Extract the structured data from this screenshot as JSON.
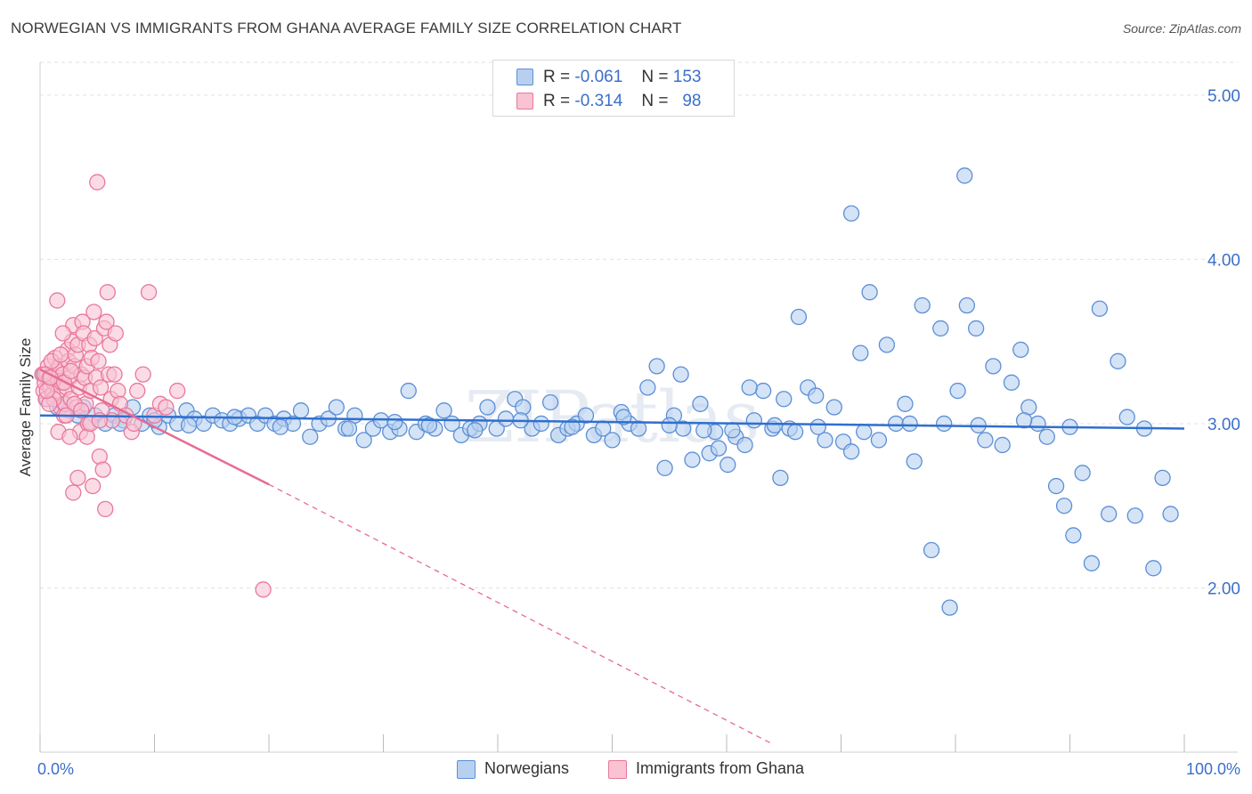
{
  "header": {
    "title": "NORWEGIAN VS IMMIGRANTS FROM GHANA AVERAGE FAMILY SIZE CORRELATION CHART",
    "source": "Source: ZipAtlas.com"
  },
  "legend_top": {
    "rows": [
      {
        "r_label": "R =",
        "r_value": "-0.061",
        "n_label": "N =",
        "n_value": "153"
      },
      {
        "r_label": "R =",
        "r_value": "-0.314",
        "n_label": "N =",
        "n_value": "98"
      }
    ]
  },
  "legend_bottom": {
    "series1": "Norwegians",
    "series2": "Immigrants from Ghana"
  },
  "colors": {
    "blue_fill": "#b8d0f0",
    "blue_stroke": "#5b8fd6",
    "blue_line": "#2f6fcf",
    "pink_fill": "#f9c3d3",
    "pink_stroke": "#e9789b",
    "pink_line": "#e66b93",
    "axis_text": "#3b6fc9",
    "grid": "#e2e2e2"
  },
  "chart_data": {
    "type": "scatter",
    "title": "NORWEGIAN VS IMMIGRANTS FROM GHANA AVERAGE FAMILY SIZE CORRELATION CHART",
    "xlabel": "",
    "ylabel": "Average Family Size",
    "xlim": [
      0,
      100
    ],
    "ylim": [
      1.0,
      5.2
    ],
    "x_tick_labels": [
      "0.0%",
      "100.0%"
    ],
    "y_ticks": [
      2.0,
      3.0,
      4.0,
      5.0
    ],
    "y_tick_labels": [
      "2.00",
      "3.00",
      "4.00",
      "5.00"
    ],
    "grid": "horizontal dashed",
    "legend_position": "top-center",
    "series": [
      {
        "name": "Norwegians",
        "r": -0.061,
        "n": 153,
        "trend": {
          "x": [
            0,
            100
          ],
          "y": [
            3.05,
            2.97
          ]
        },
        "points": [
          [
            0.3,
            3.3
          ],
          [
            0.6,
            3.15
          ],
          [
            1.5,
            3.1
          ],
          [
            2.1,
            3.12
          ],
          [
            3.3,
            3.05
          ],
          [
            4.2,
            3.0
          ],
          [
            4.8,
            3.05
          ],
          [
            5.7,
            3.0
          ],
          [
            6.5,
            3.05
          ],
          [
            7.3,
            3.02
          ],
          [
            8.1,
            3.1
          ],
          [
            8.9,
            3.0
          ],
          [
            9.6,
            3.05
          ],
          [
            10.4,
            2.98
          ],
          [
            11.2,
            3.05
          ],
          [
            12.0,
            3.0
          ],
          [
            12.8,
            3.08
          ],
          [
            13.5,
            3.03
          ],
          [
            14.3,
            3.0
          ],
          [
            15.1,
            3.05
          ],
          [
            15.9,
            3.02
          ],
          [
            16.6,
            3.0
          ],
          [
            17.4,
            3.03
          ],
          [
            18.2,
            3.05
          ],
          [
            19.0,
            3.0
          ],
          [
            19.7,
            3.05
          ],
          [
            20.5,
            3.0
          ],
          [
            21.3,
            3.03
          ],
          [
            22.1,
            3.0
          ],
          [
            22.8,
            3.08
          ],
          [
            23.6,
            2.92
          ],
          [
            24.4,
            3.0
          ],
          [
            25.2,
            3.03
          ],
          [
            25.9,
            3.1
          ],
          [
            26.7,
            2.97
          ],
          [
            27.5,
            3.05
          ],
          [
            28.3,
            2.9
          ],
          [
            29.1,
            2.97
          ],
          [
            29.8,
            3.02
          ],
          [
            30.6,
            2.95
          ],
          [
            31.4,
            2.97
          ],
          [
            32.2,
            3.2
          ],
          [
            32.9,
            2.95
          ],
          [
            33.7,
            3.0
          ],
          [
            34.5,
            2.97
          ],
          [
            35.3,
            3.08
          ],
          [
            36.0,
            3.0
          ],
          [
            36.8,
            2.93
          ],
          [
            37.6,
            2.97
          ],
          [
            38.4,
            3.0
          ],
          [
            39.1,
            3.1
          ],
          [
            39.9,
            2.97
          ],
          [
            40.7,
            3.03
          ],
          [
            41.5,
            3.15
          ],
          [
            42.2,
            3.1
          ],
          [
            43.0,
            2.97
          ],
          [
            43.8,
            3.0
          ],
          [
            44.6,
            3.13
          ],
          [
            45.3,
            2.93
          ],
          [
            46.1,
            2.97
          ],
          [
            46.9,
            3.0
          ],
          [
            47.7,
            3.05
          ],
          [
            48.4,
            2.93
          ],
          [
            49.2,
            2.97
          ],
          [
            50.0,
            2.9
          ],
          [
            50.8,
            3.07
          ],
          [
            51.5,
            3.0
          ],
          [
            52.3,
            2.97
          ],
          [
            53.1,
            3.22
          ],
          [
            53.9,
            3.35
          ],
          [
            54.6,
            2.73
          ],
          [
            55.4,
            3.05
          ],
          [
            56.2,
            2.97
          ],
          [
            57.0,
            2.78
          ],
          [
            57.7,
            3.12
          ],
          [
            58.5,
            2.82
          ],
          [
            59.3,
            2.85
          ],
          [
            60.1,
            2.75
          ],
          [
            60.8,
            2.92
          ],
          [
            61.6,
            2.87
          ],
          [
            62.4,
            3.02
          ],
          [
            63.2,
            3.2
          ],
          [
            64.0,
            2.97
          ],
          [
            64.7,
            2.67
          ],
          [
            65.5,
            2.97
          ],
          [
            66.3,
            3.65
          ],
          [
            67.1,
            3.22
          ],
          [
            67.8,
            3.17
          ],
          [
            68.6,
            2.9
          ],
          [
            69.4,
            3.1
          ],
          [
            70.2,
            2.89
          ],
          [
            70.9,
            2.83
          ],
          [
            71.7,
            3.43
          ],
          [
            72.5,
            3.8
          ],
          [
            73.3,
            2.9
          ],
          [
            74.0,
            3.48
          ],
          [
            74.8,
            3.0
          ],
          [
            75.6,
            3.12
          ],
          [
            76.4,
            2.77
          ],
          [
            77.1,
            3.72
          ],
          [
            77.9,
            2.23
          ],
          [
            78.7,
            3.58
          ],
          [
            79.5,
            1.88
          ],
          [
            80.2,
            3.2
          ],
          [
            81.0,
            3.72
          ],
          [
            81.8,
            3.58
          ],
          [
            82.6,
            2.9
          ],
          [
            83.3,
            3.35
          ],
          [
            84.1,
            2.87
          ],
          [
            84.9,
            3.25
          ],
          [
            85.7,
            3.45
          ],
          [
            86.4,
            3.1
          ],
          [
            87.2,
            3.0
          ],
          [
            88.0,
            2.92
          ],
          [
            88.8,
            2.62
          ],
          [
            89.5,
            2.5
          ],
          [
            90.3,
            2.32
          ],
          [
            91.1,
            2.7
          ],
          [
            91.9,
            2.15
          ],
          [
            92.6,
            3.7
          ],
          [
            93.4,
            2.45
          ],
          [
            94.2,
            3.38
          ],
          [
            95.0,
            3.04
          ],
          [
            95.7,
            2.44
          ],
          [
            96.5,
            2.97
          ],
          [
            97.3,
            2.12
          ],
          [
            98.1,
            2.67
          ],
          [
            98.8,
            2.45
          ],
          [
            70.9,
            4.28
          ],
          [
            80.8,
            4.51
          ],
          [
            79.0,
            3.0
          ],
          [
            62.0,
            3.22
          ],
          [
            66.0,
            2.95
          ],
          [
            65.0,
            3.15
          ],
          [
            56.0,
            3.3
          ],
          [
            59.0,
            2.95
          ],
          [
            1.0,
            3.28
          ],
          [
            2.5,
            3.08
          ],
          [
            3.8,
            3.1
          ],
          [
            7.0,
            3.0
          ],
          [
            10.0,
            3.02
          ],
          [
            13.0,
            2.99
          ],
          [
            17.0,
            3.04
          ],
          [
            21.0,
            2.98
          ],
          [
            27.0,
            2.97
          ],
          [
            31.0,
            3.01
          ],
          [
            34.0,
            2.99
          ],
          [
            38.0,
            2.96
          ],
          [
            42.0,
            3.02
          ],
          [
            46.5,
            2.98
          ],
          [
            51.0,
            3.04
          ],
          [
            55.0,
            2.99
          ],
          [
            58.0,
            2.96
          ],
          [
            60.5,
            2.96
          ],
          [
            64.2,
            2.99
          ],
          [
            68.0,
            2.98
          ],
          [
            72.0,
            2.95
          ],
          [
            76.0,
            3.0
          ],
          [
            82.0,
            2.99
          ],
          [
            86.0,
            3.02
          ],
          [
            90.0,
            2.98
          ]
        ]
      },
      {
        "name": "Immigrants from Ghana",
        "r": -0.314,
        "n": 98,
        "trend": {
          "x": [
            0,
            20.0
          ],
          "y": [
            3.33,
            2.63
          ]
        },
        "trend_dashed": {
          "x": [
            20.0,
            64.0
          ],
          "y": [
            2.63,
            1.05
          ]
        },
        "points": [
          [
            0.2,
            3.3
          ],
          [
            0.3,
            3.2
          ],
          [
            0.4,
            3.25
          ],
          [
            0.5,
            3.15
          ],
          [
            0.6,
            3.3
          ],
          [
            0.7,
            3.35
          ],
          [
            0.8,
            3.28
          ],
          [
            0.9,
            3.22
          ],
          [
            1.0,
            3.3
          ],
          [
            1.1,
            3.18
          ],
          [
            1.2,
            3.25
          ],
          [
            1.3,
            3.4
          ],
          [
            1.4,
            3.32
          ],
          [
            1.5,
            3.28
          ],
          [
            1.6,
            3.2
          ],
          [
            1.7,
            3.35
          ],
          [
            1.8,
            3.1
          ],
          [
            1.9,
            3.25
          ],
          [
            2.0,
            3.3
          ],
          [
            2.1,
            3.05
          ],
          [
            2.2,
            3.12
          ],
          [
            2.3,
            3.22
          ],
          [
            2.4,
            3.45
          ],
          [
            2.5,
            3.38
          ],
          [
            2.6,
            3.28
          ],
          [
            2.7,
            3.15
          ],
          [
            2.8,
            3.5
          ],
          [
            2.9,
            3.6
          ],
          [
            3.0,
            3.35
          ],
          [
            3.1,
            3.42
          ],
          [
            3.2,
            3.1
          ],
          [
            3.3,
            3.48
          ],
          [
            3.4,
            3.22
          ],
          [
            3.5,
            2.95
          ],
          [
            3.6,
            3.3
          ],
          [
            3.7,
            3.62
          ],
          [
            3.8,
            3.55
          ],
          [
            3.9,
            3.28
          ],
          [
            4.0,
            3.12
          ],
          [
            4.1,
            3.35
          ],
          [
            4.2,
            3.0
          ],
          [
            4.3,
            3.48
          ],
          [
            4.4,
            3.2
          ],
          [
            4.5,
            3.4
          ],
          [
            4.6,
            2.62
          ],
          [
            4.7,
            3.68
          ],
          [
            4.8,
            3.52
          ],
          [
            4.9,
            3.28
          ],
          [
            5.0,
            4.47
          ],
          [
            5.1,
            3.38
          ],
          [
            5.2,
            2.8
          ],
          [
            5.3,
            3.22
          ],
          [
            5.4,
            3.08
          ],
          [
            5.5,
            2.72
          ],
          [
            5.6,
            3.58
          ],
          [
            5.7,
            2.48
          ],
          [
            5.8,
            3.62
          ],
          [
            5.9,
            3.8
          ],
          [
            6.0,
            3.3
          ],
          [
            6.1,
            3.48
          ],
          [
            6.2,
            3.15
          ],
          [
            6.3,
            3.02
          ],
          [
            6.5,
            3.3
          ],
          [
            6.8,
            3.2
          ],
          [
            7.0,
            3.12
          ],
          [
            7.5,
            3.05
          ],
          [
            8.0,
            2.95
          ],
          [
            8.2,
            3.0
          ],
          [
            8.5,
            3.2
          ],
          [
            9.0,
            3.3
          ],
          [
            9.5,
            3.8
          ],
          [
            10.0,
            3.05
          ],
          [
            10.5,
            3.12
          ],
          [
            11.0,
            3.1
          ],
          [
            12.0,
            3.2
          ],
          [
            19.5,
            1.99
          ],
          [
            1.6,
            2.95
          ],
          [
            2.6,
            2.92
          ],
          [
            2.9,
            2.58
          ],
          [
            3.3,
            2.67
          ],
          [
            4.1,
            2.92
          ],
          [
            3.0,
            3.12
          ],
          [
            2.3,
            3.05
          ],
          [
            1.2,
            3.15
          ],
          [
            0.8,
            3.12
          ],
          [
            0.4,
            3.3
          ],
          [
            1.0,
            3.38
          ],
          [
            1.8,
            3.42
          ],
          [
            2.0,
            3.55
          ],
          [
            1.5,
            3.75
          ],
          [
            0.6,
            3.2
          ],
          [
            0.9,
            3.28
          ],
          [
            2.1,
            3.25
          ],
          [
            2.7,
            3.32
          ],
          [
            3.6,
            3.08
          ],
          [
            4.4,
            3.0
          ],
          [
            5.2,
            3.02
          ],
          [
            6.6,
            3.55
          ]
        ]
      }
    ]
  }
}
